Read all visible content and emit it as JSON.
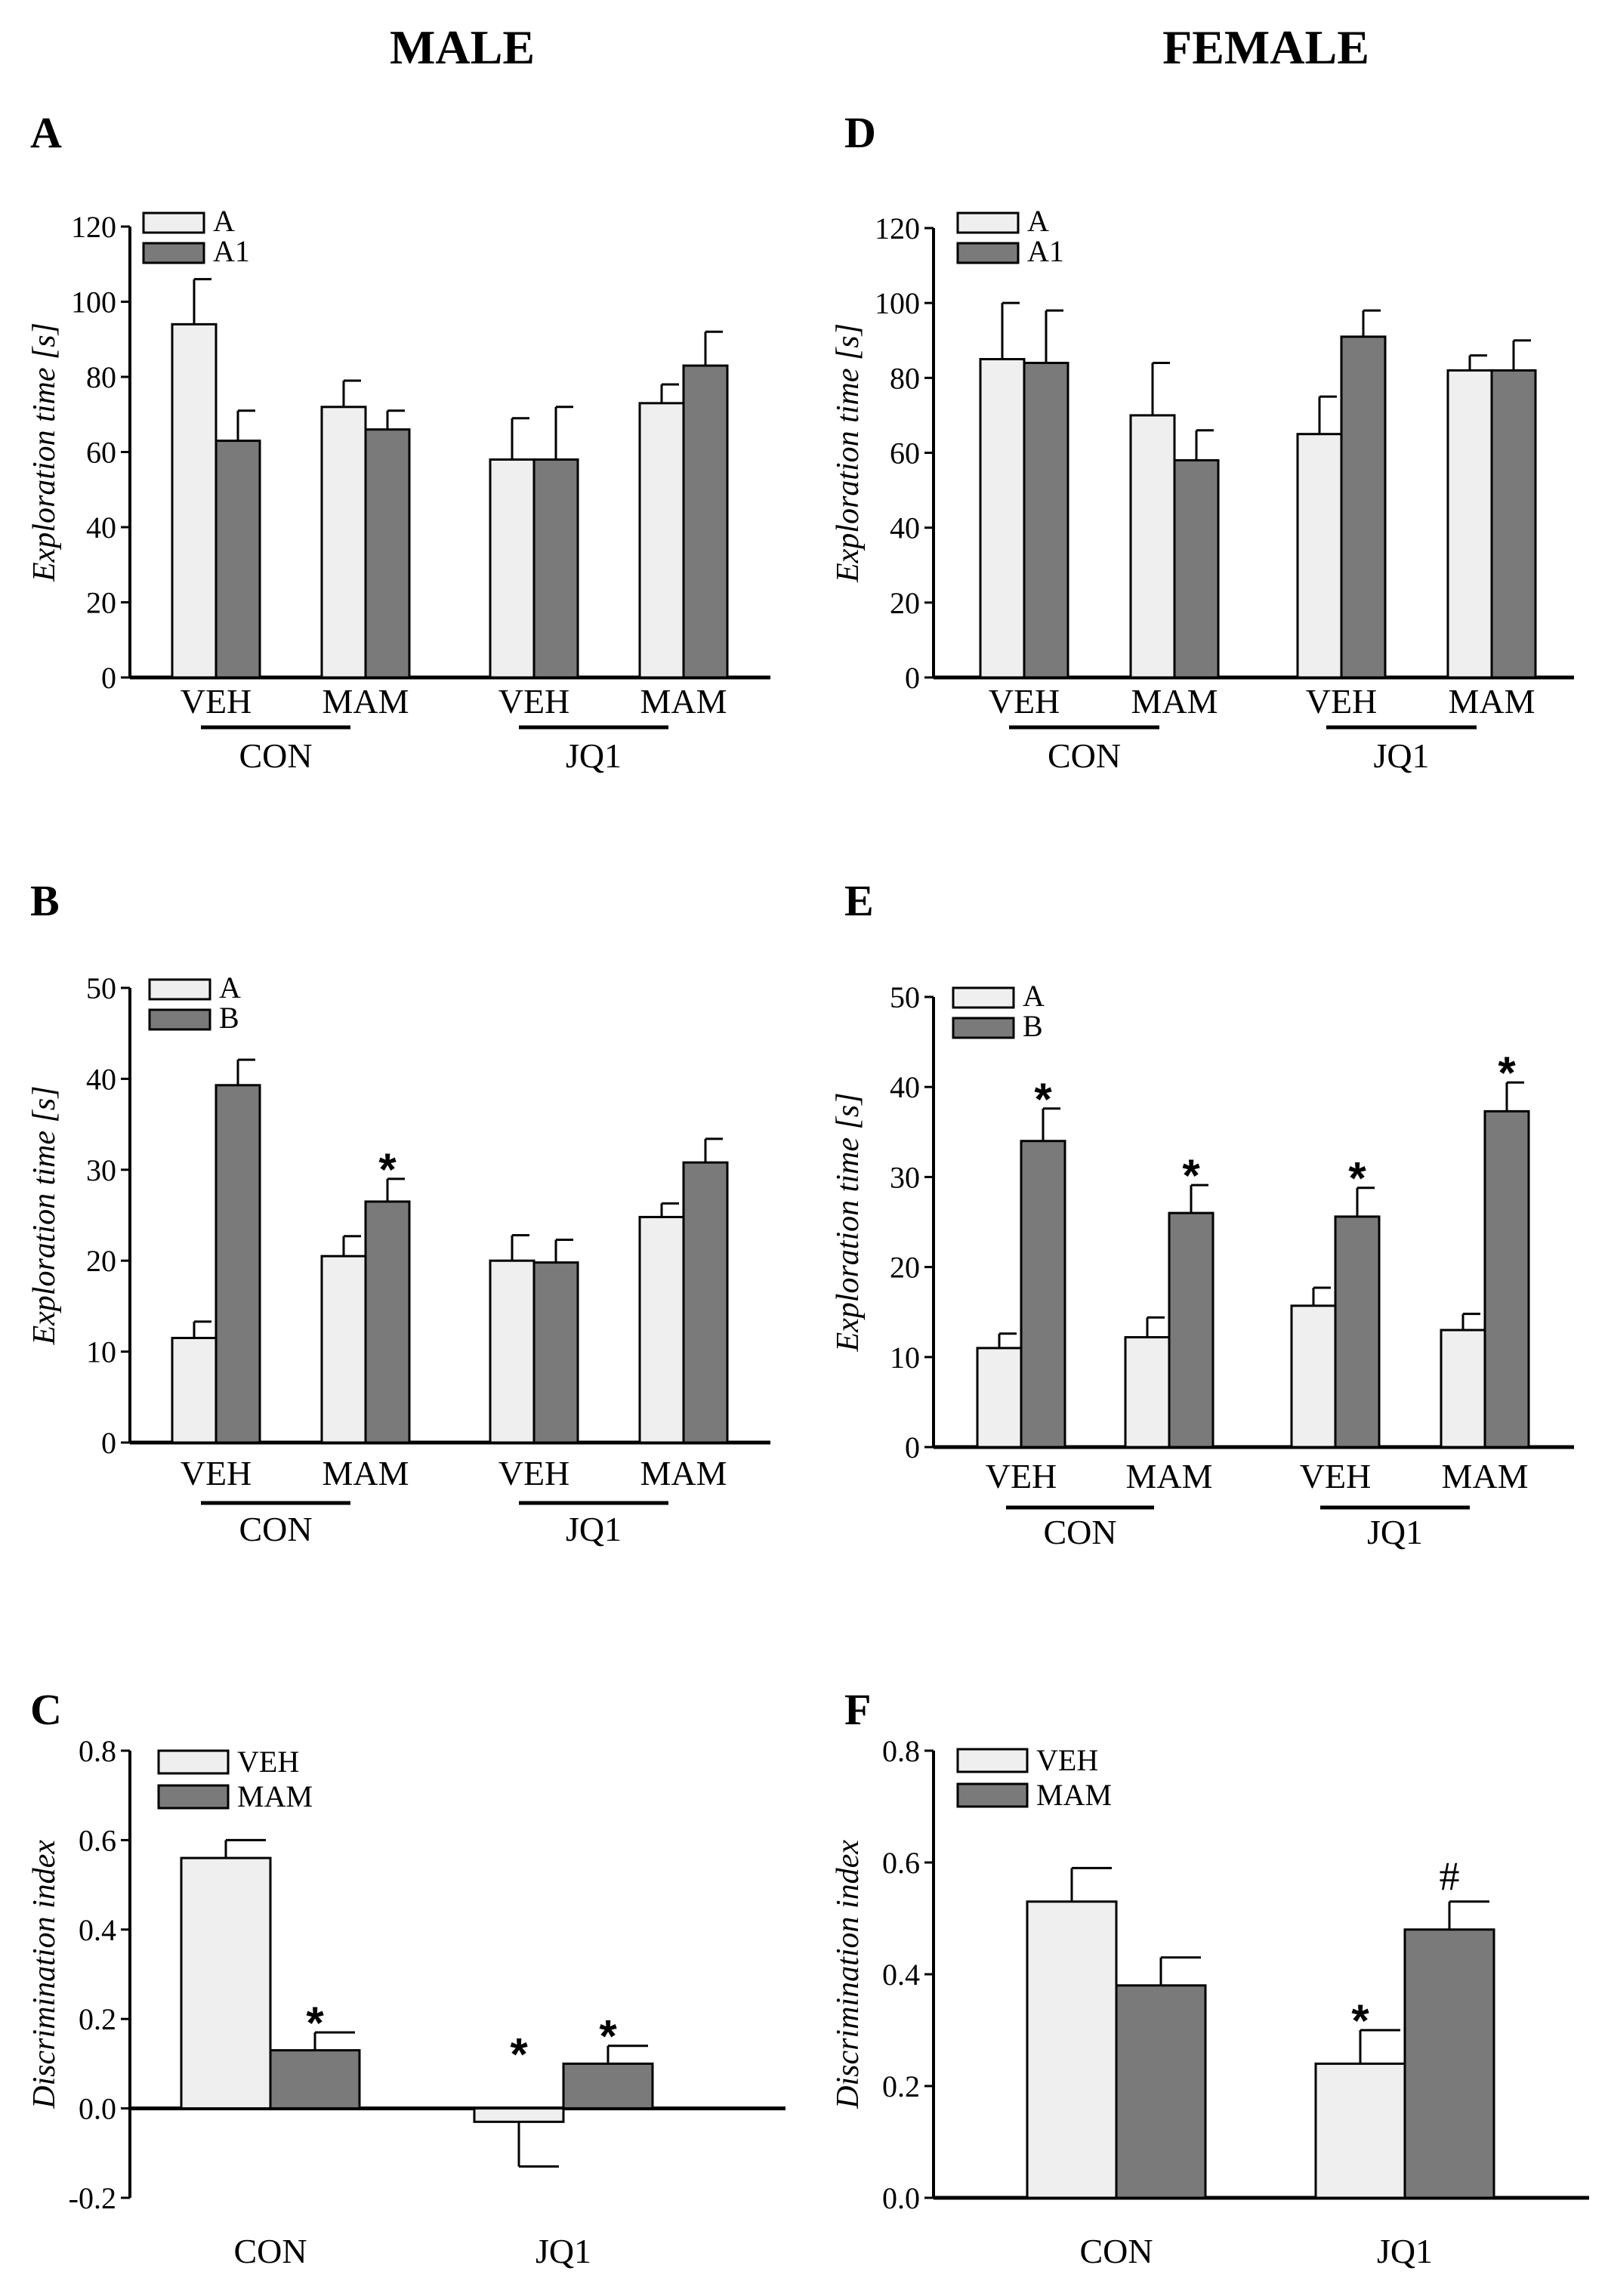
{
  "headers": {
    "male": "MALE",
    "female": "FEMALE"
  },
  "colors": {
    "light": "#efefef",
    "dark": "#7a7a7a",
    "stroke": "#000000"
  },
  "chart_data": [
    {
      "id": "A",
      "panel": "A",
      "type": "bar",
      "ylabel": "Exploration time [s]",
      "ylim": [
        0,
        120
      ],
      "yticks": [
        "0",
        "20",
        "40",
        "60",
        "80",
        "100",
        "120"
      ],
      "categories": [
        "VEH",
        "MAM",
        "VEH",
        "MAM"
      ],
      "groups": [
        {
          "label": "CON",
          "span": [
            0,
            1
          ]
        },
        {
          "label": "JQ1",
          "span": [
            2,
            3
          ]
        }
      ],
      "series": [
        {
          "name": "A",
          "color": "light",
          "values": [
            94,
            72,
            58,
            73
          ],
          "errors": [
            12,
            7,
            11,
            5
          ]
        },
        {
          "name": "A1",
          "color": "dark",
          "values": [
            63,
            66,
            58,
            83
          ],
          "errors": [
            8,
            5,
            14,
            9
          ]
        }
      ],
      "annotations": []
    },
    {
      "id": "B",
      "panel": "B",
      "type": "bar",
      "ylabel": "Exploration time [s]",
      "ylim": [
        0,
        50
      ],
      "yticks": [
        "0",
        "10",
        "20",
        "30",
        "40",
        "50"
      ],
      "categories": [
        "VEH",
        "MAM",
        "VEH",
        "MAM"
      ],
      "groups": [
        {
          "label": "CON",
          "span": [
            0,
            1
          ]
        },
        {
          "label": "JQ1",
          "span": [
            2,
            3
          ]
        }
      ],
      "series": [
        {
          "name": "A",
          "color": "light",
          "values": [
            11.5,
            20.5,
            20,
            24.8
          ],
          "errors": [
            1.8,
            2.2,
            2.8,
            1.5
          ]
        },
        {
          "name": "B",
          "color": "dark",
          "values": [
            39.3,
            26.5,
            19.8,
            30.8
          ],
          "errors": [
            2.8,
            2.5,
            2.5,
            2.6
          ]
        }
      ],
      "annotations": [
        {
          "category": 1,
          "series": 1,
          "text": "*"
        }
      ]
    },
    {
      "id": "C",
      "panel": "C",
      "type": "bar",
      "ylabel": "Discrimination index",
      "ylim": [
        -0.2,
        0.8
      ],
      "yticks": [
        "-0.2",
        "0.0",
        "0.2",
        "0.4",
        "0.6",
        "0.8"
      ],
      "categories": [
        "CON",
        "JQ1"
      ],
      "groups": [],
      "series": [
        {
          "name": "VEH",
          "color": "light",
          "values": [
            0.56,
            -0.03
          ],
          "errors": [
            0.04,
            0.1
          ]
        },
        {
          "name": "MAM",
          "color": "dark",
          "values": [
            0.13,
            0.1
          ],
          "errors": [
            0.04,
            0.04
          ]
        }
      ],
      "annotations": [
        {
          "category": 0,
          "series": 1,
          "text": "*"
        },
        {
          "category": 1,
          "series": 0,
          "text": "*"
        },
        {
          "category": 1,
          "series": 1,
          "text": "*"
        }
      ]
    },
    {
      "id": "D",
      "panel": "D",
      "type": "bar",
      "ylabel": "Exploration time [s]",
      "ylim": [
        0,
        120
      ],
      "yticks": [
        "0",
        "20",
        "40",
        "60",
        "80",
        "100",
        "120"
      ],
      "categories": [
        "VEH",
        "MAM",
        "VEH",
        "MAM"
      ],
      "groups": [
        {
          "label": "CON",
          "span": [
            0,
            1
          ]
        },
        {
          "label": "JQ1",
          "span": [
            2,
            3
          ]
        }
      ],
      "series": [
        {
          "name": "A",
          "color": "light",
          "values": [
            85,
            70,
            65,
            82
          ],
          "errors": [
            15,
            14,
            10,
            4
          ]
        },
        {
          "name": "A1",
          "color": "dark",
          "values": [
            84,
            58,
            91,
            82
          ],
          "errors": [
            14,
            8,
            7,
            8
          ]
        }
      ],
      "annotations": []
    },
    {
      "id": "E",
      "panel": "E",
      "type": "bar",
      "ylabel": "Exploration time [s]",
      "ylim": [
        0,
        50
      ],
      "yticks": [
        "0",
        "10",
        "20",
        "30",
        "40",
        "50"
      ],
      "categories": [
        "VEH",
        "MAM",
        "VEH",
        "MAM"
      ],
      "groups": [
        {
          "label": "CON",
          "span": [
            0,
            1
          ]
        },
        {
          "label": "JQ1",
          "span": [
            2,
            3
          ]
        }
      ],
      "series": [
        {
          "name": "A",
          "color": "light",
          "values": [
            11,
            12.2,
            15.7,
            13
          ],
          "errors": [
            1.6,
            2.2,
            2,
            1.8
          ]
        },
        {
          "name": "B",
          "color": "dark",
          "values": [
            34,
            26,
            25.6,
            37.3
          ],
          "errors": [
            3.6,
            3.1,
            3.2,
            3.2
          ]
        }
      ],
      "annotations": [
        {
          "category": 0,
          "series": 1,
          "text": "*"
        },
        {
          "category": 1,
          "series": 1,
          "text": "*"
        },
        {
          "category": 2,
          "series": 1,
          "text": "*"
        },
        {
          "category": 3,
          "series": 1,
          "text": "*"
        }
      ]
    },
    {
      "id": "F",
      "panel": "F",
      "type": "bar",
      "ylabel": "Discrimination index",
      "ylim": [
        0,
        0.8
      ],
      "yticks": [
        "0.0",
        "0.2",
        "0.4",
        "0.6",
        "0.8"
      ],
      "categories": [
        "CON",
        "JQ1"
      ],
      "groups": [],
      "series": [
        {
          "name": "VEH",
          "color": "light",
          "values": [
            0.53,
            0.24
          ],
          "errors": [
            0.06,
            0.06
          ]
        },
        {
          "name": "MAM",
          "color": "dark",
          "values": [
            0.38,
            0.48
          ],
          "errors": [
            0.05,
            0.05
          ]
        }
      ],
      "annotations": [
        {
          "category": 1,
          "series": 0,
          "text": "*"
        },
        {
          "category": 1,
          "series": 1,
          "text": "#"
        }
      ]
    }
  ]
}
